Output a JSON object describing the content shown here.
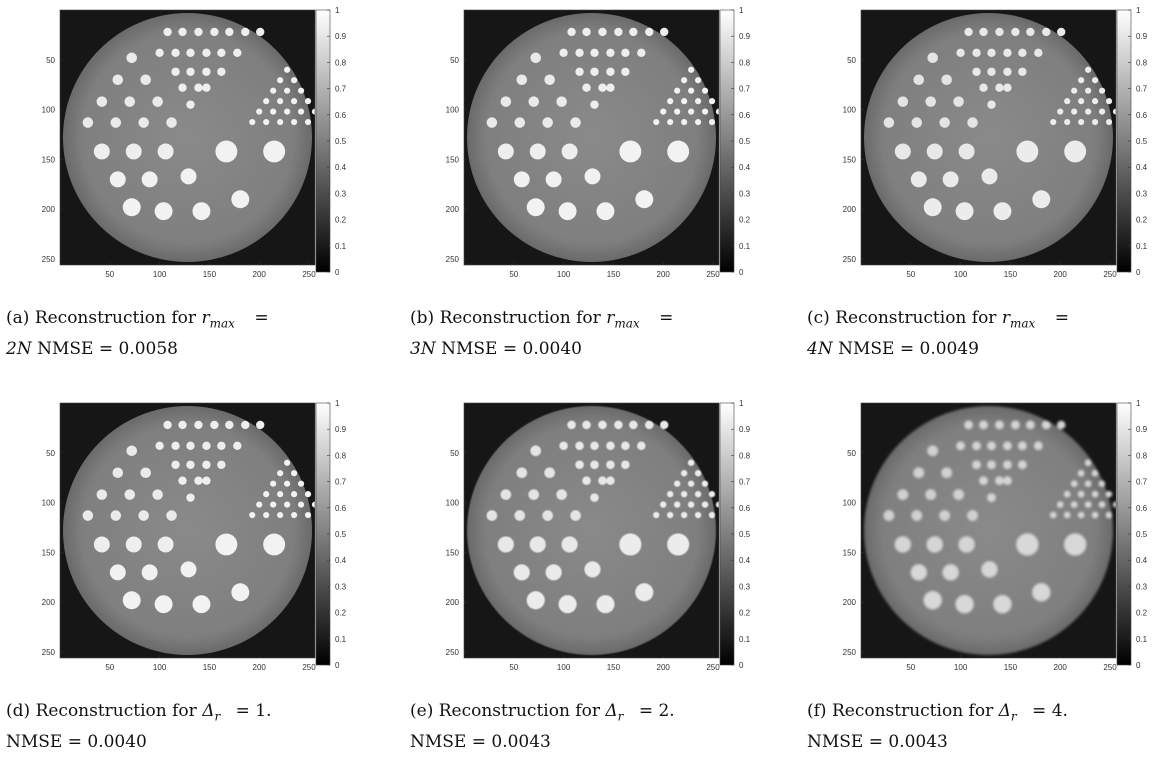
{
  "figure": {
    "colorbar_ticks": [
      "0",
      "0.1",
      "0.2",
      "0.3",
      "0.4",
      "0.5",
      "0.6",
      "0.7",
      "0.8",
      "0.9",
      "1"
    ],
    "x_ticks": [
      "50",
      "100",
      "150",
      "200",
      "250"
    ],
    "y_ticks": [
      "50",
      "100",
      "150",
      "200",
      "250"
    ],
    "panels": [
      {
        "id": "a",
        "label": "(a)",
        "caption_prefix": "Reconstruction for",
        "param": "r",
        "param_sub": "max",
        "equals": "=",
        "value": "2N",
        "nmse_label": "NMSE = 0.0058",
        "contrast": 1.0,
        "blur": 0.0
      },
      {
        "id": "b",
        "label": "(b)",
        "caption_prefix": "Reconstruction for",
        "param": "r",
        "param_sub": "max",
        "equals": "=",
        "value": "3N",
        "nmse_label": "NMSE = 0.0040",
        "contrast": 1.0,
        "blur": 0.0
      },
      {
        "id": "c",
        "label": "(c)",
        "caption_prefix": "Reconstruction for",
        "param": "r",
        "param_sub": "max",
        "equals": "=",
        "value": "4N",
        "nmse_label": "NMSE = 0.0049",
        "contrast": 0.95,
        "blur": 0.3
      },
      {
        "id": "d",
        "label": "(d)",
        "caption_prefix": "Reconstruction for",
        "param": "Δ",
        "param_sub": "r",
        "equals": "=",
        "value": "1.",
        "nmse_label": "NMSE = 0.0040",
        "contrast": 1.0,
        "blur": 0.0
      },
      {
        "id": "e",
        "label": "(e)",
        "caption_prefix": "Reconstruction for",
        "param": "Δ",
        "param_sub": "r",
        "equals": "=",
        "value": "2.",
        "nmse_label": "NMSE = 0.0043",
        "contrast": 0.95,
        "blur": 0.4
      },
      {
        "id": "f",
        "label": "(f)",
        "caption_prefix": "Reconstruction for",
        "param": "Δ",
        "param_sub": "r",
        "equals": "=",
        "value": "4.",
        "nmse_label": "NMSE = 0.0043",
        "contrast": 0.8,
        "blur": 1.3
      }
    ]
  }
}
